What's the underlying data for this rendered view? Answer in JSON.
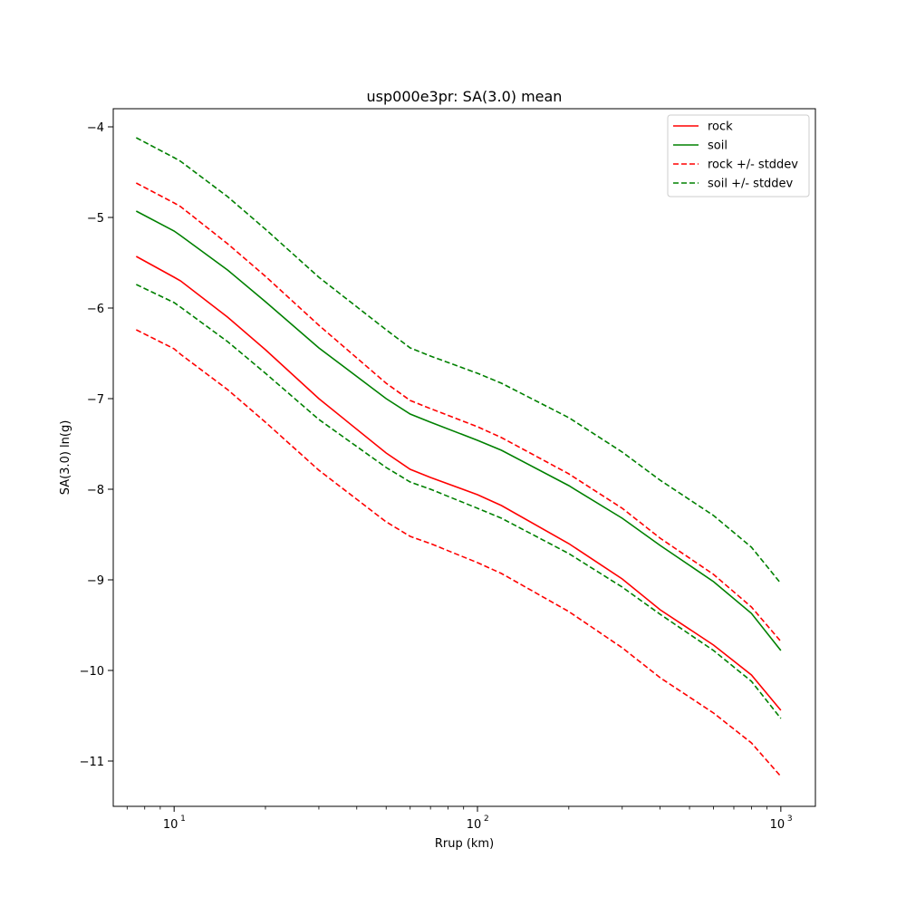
{
  "chart_data": {
    "type": "line",
    "title": "usp000e3pr: SA(3.0) mean",
    "xlabel": "Rrup (km)",
    "ylabel": "SA(3.0) ln(g)",
    "xscale": "log",
    "xlim": [
      6.3,
      1300
    ],
    "ylim": [
      -11.5,
      -3.8
    ],
    "grid": false,
    "legend_position": "top-right",
    "x": [
      7.5,
      10,
      10.5,
      15,
      20,
      30,
      50,
      60,
      70,
      100,
      120,
      200,
      300,
      400,
      600,
      800,
      1000
    ],
    "x_ticks": [
      {
        "value": 10,
        "label": "10",
        "exp": "1"
      },
      {
        "value": 100,
        "label": "10",
        "exp": "2"
      },
      {
        "value": 1000,
        "label": "10",
        "exp": "3"
      }
    ],
    "y_ticks": [
      -11,
      -10,
      -9,
      -8,
      -7,
      -6,
      -5,
      -4
    ],
    "y_tick_labels": [
      "−11",
      "−10",
      "−9",
      "−8",
      "−7",
      "−6",
      "−5",
      "−4"
    ],
    "series": [
      {
        "name": "rock",
        "color": "#ff0000",
        "style": "solid",
        "values": [
          -5.43,
          -5.66,
          -5.7,
          -6.1,
          -6.46,
          -7.0,
          -7.6,
          -7.78,
          -7.87,
          -8.06,
          -8.18,
          -8.6,
          -8.99,
          -9.33,
          -9.72,
          -10.05,
          -10.44
        ]
      },
      {
        "name": "soil",
        "color": "#008000",
        "style": "solid",
        "values": [
          -4.93,
          -5.15,
          -5.2,
          -5.58,
          -5.93,
          -6.44,
          -7.0,
          -7.17,
          -7.26,
          -7.46,
          -7.57,
          -7.96,
          -8.32,
          -8.62,
          -9.02,
          -9.37,
          -9.78
        ]
      },
      {
        "name": "rock +/- stddev",
        "color": "#ff0000",
        "style": "dashed",
        "values": [
          -4.62,
          -4.84,
          -4.88,
          -5.29,
          -5.65,
          -6.19,
          -6.83,
          -7.02,
          -7.11,
          -7.31,
          -7.43,
          -7.83,
          -8.21,
          -8.54,
          -8.94,
          -9.3,
          -9.68
        ]
      },
      {
        "name": "",
        "color": "#ff0000",
        "style": "dashed",
        "values": [
          -6.24,
          -6.45,
          -6.51,
          -6.9,
          -7.26,
          -7.79,
          -8.36,
          -8.52,
          -8.6,
          -8.81,
          -8.93,
          -9.35,
          -9.75,
          -10.08,
          -10.47,
          -10.8,
          -11.17
        ]
      },
      {
        "name": "soil +/- stddev",
        "color": "#008000",
        "style": "dashed",
        "values": [
          -4.12,
          -4.34,
          -4.38,
          -4.77,
          -5.13,
          -5.66,
          -6.24,
          -6.44,
          -6.53,
          -6.72,
          -6.83,
          -7.21,
          -7.59,
          -7.9,
          -8.29,
          -8.64,
          -9.04
        ]
      },
      {
        "name": "",
        "color": "#008000",
        "style": "dashed",
        "values": [
          -5.74,
          -5.94,
          -5.99,
          -6.37,
          -6.72,
          -7.23,
          -7.76,
          -7.92,
          -8.0,
          -8.21,
          -8.32,
          -8.71,
          -9.08,
          -9.38,
          -9.78,
          -10.12,
          -10.53
        ]
      }
    ],
    "legend": [
      {
        "label": "rock",
        "color": "#ff0000",
        "style": "solid"
      },
      {
        "label": "soil",
        "color": "#008000",
        "style": "solid"
      },
      {
        "label": "rock +/- stddev",
        "color": "#ff0000",
        "style": "dashed"
      },
      {
        "label": "soil +/- stddev",
        "color": "#008000",
        "style": "dashed"
      }
    ]
  }
}
